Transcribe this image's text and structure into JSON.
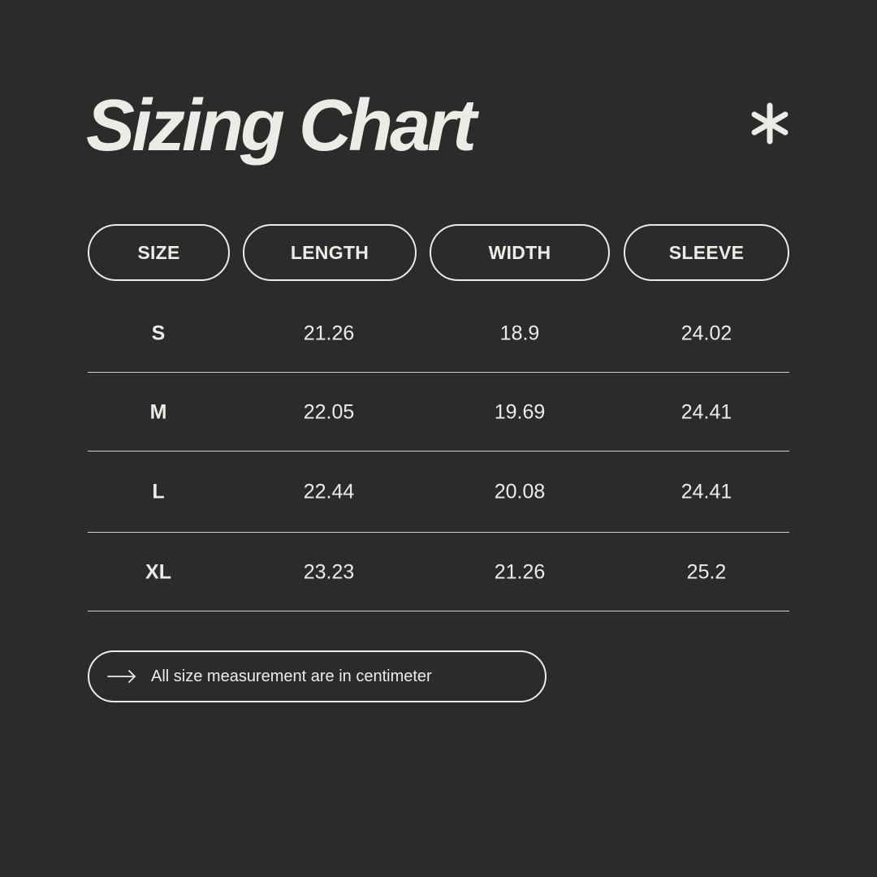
{
  "title": "Sizing Chart",
  "decor_icon": "asterisk-icon",
  "colors": {
    "background": "#2b2b2b",
    "foreground": "#ecebe6"
  },
  "table": {
    "headers": [
      "SIZE",
      "LENGTH",
      "WIDTH",
      "SLEEVE"
    ],
    "rows": [
      [
        "S",
        "21.26",
        "18.9",
        "24.02"
      ],
      [
        "M",
        "22.05",
        "19.69",
        "24.41"
      ],
      [
        "L",
        "22.44",
        "20.08",
        "24.41"
      ],
      [
        "XL",
        "23.23",
        "21.26",
        "25.2"
      ]
    ]
  },
  "footer": {
    "icon": "arrow-right-icon",
    "note": "All size measurement are in centimeter"
  }
}
